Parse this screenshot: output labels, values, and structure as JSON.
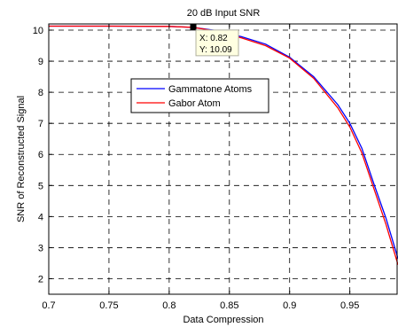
{
  "chart_data": {
    "type": "line",
    "title": "20 dB Input SNR",
    "xlabel": "Data Compression",
    "ylabel": "SNR of Reconstructed Signal",
    "xlim": [
      0.7,
      0.99
    ],
    "ylim": [
      1.5,
      10.2
    ],
    "xticks": [
      0.7,
      0.75,
      0.8,
      0.85,
      0.9,
      0.95
    ],
    "xtick_labels": [
      "0.7",
      "0.75",
      "0.8",
      "0.85",
      "0.9",
      "0.95"
    ],
    "yticks": [
      2,
      3,
      4,
      5,
      6,
      7,
      8,
      9,
      10
    ],
    "ytick_labels": [
      "2",
      "3",
      "4",
      "5",
      "6",
      "7",
      "8",
      "9",
      "10"
    ],
    "grid": true,
    "legend_position": "center-left",
    "series": [
      {
        "name": "Gammatone Atoms",
        "color": "#0000ff",
        "x": [
          0.7,
          0.75,
          0.8,
          0.82,
          0.84,
          0.86,
          0.88,
          0.9,
          0.92,
          0.94,
          0.95,
          0.96,
          0.97,
          0.98,
          0.99
        ],
        "y": [
          10.13,
          10.13,
          10.12,
          10.09,
          9.98,
          9.79,
          9.55,
          9.13,
          8.5,
          7.6,
          7.0,
          6.2,
          5.05,
          3.95,
          2.65
        ]
      },
      {
        "name": "Gabor Atom",
        "color": "#ff0000",
        "x": [
          0.7,
          0.75,
          0.8,
          0.82,
          0.84,
          0.86,
          0.88,
          0.9,
          0.92,
          0.94,
          0.95,
          0.96,
          0.97,
          0.98,
          0.99
        ],
        "y": [
          10.13,
          10.13,
          10.12,
          10.09,
          9.96,
          9.75,
          9.5,
          9.1,
          8.45,
          7.5,
          6.88,
          6.05,
          4.9,
          3.75,
          2.45
        ]
      }
    ],
    "datatip": {
      "x": 0.82,
      "y": 10.09,
      "x_label": "X: 0.82",
      "y_label": "Y: 10.09"
    }
  }
}
